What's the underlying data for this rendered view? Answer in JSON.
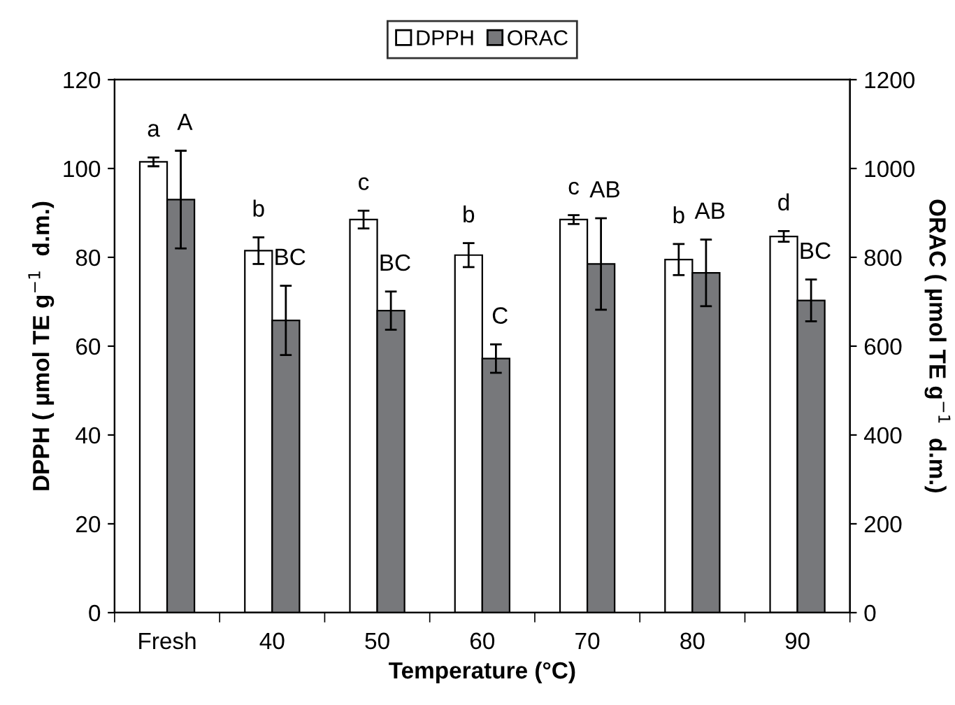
{
  "chart_data": {
    "type": "bar",
    "xlabel": "Temperature (°C)",
    "ylabel": "DPPH ( µmol TE g$^{−1}$  d.m.)",
    "y2label": "ORAC ( µmol TE g$^{−1}$  d.m.)",
    "categories": [
      "Fresh",
      "40",
      "50",
      "60",
      "70",
      "80",
      "90"
    ],
    "series": [
      {
        "name": "DPPH",
        "color": "#ffffff",
        "values": [
          101.5,
          81.5,
          88.5,
          80.5,
          88.5,
          79.5,
          84.7
        ],
        "errors": [
          1,
          3,
          2,
          2.7,
          1,
          3.5,
          1.2
        ],
        "value_labels": [
          "a",
          "b",
          "c",
          "b",
          "c",
          "b",
          "d"
        ]
      },
      {
        "name": "ORAC",
        "color": "#77787b",
        "axis": "y2",
        "values": [
          930,
          658,
          680,
          572,
          785,
          765,
          703
        ],
        "errors": [
          110,
          78,
          43,
          32,
          103,
          75,
          47
        ],
        "value_labels": [
          "A",
          "BC",
          "BC",
          "C",
          "AB",
          "AB",
          "BC"
        ]
      }
    ],
    "ylim": [
      0,
      120
    ],
    "yticks": [
      0,
      20,
      40,
      60,
      80,
      100,
      120
    ],
    "y2lim": [
      0,
      1200
    ],
    "y2ticks": [
      0,
      200,
      400,
      600,
      800,
      1000,
      1200
    ],
    "grid": false,
    "legend": "top"
  }
}
